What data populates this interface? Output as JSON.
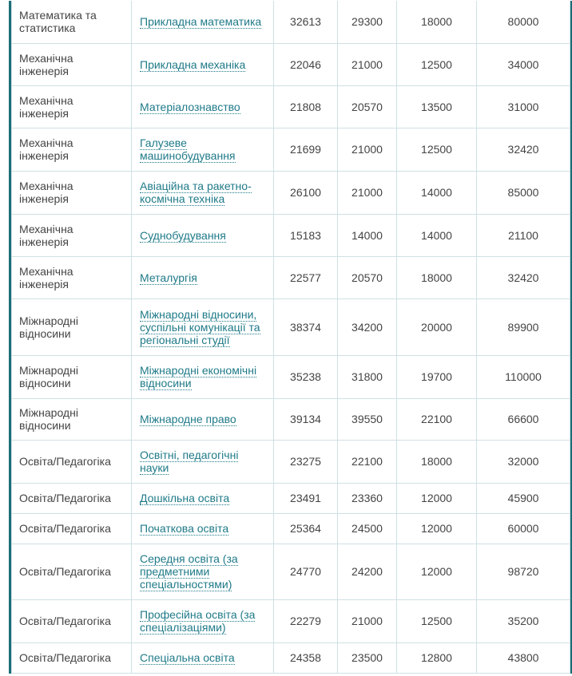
{
  "colors": {
    "accent": "#1b6e78",
    "link": "#1f7a88",
    "grid": "#cfe0e3"
  },
  "rows": [
    {
      "field": "Математика та статистика",
      "specialty": "Прикладна математика",
      "v1": "32613",
      "v2": "29300",
      "v3": "18000",
      "v4": "80000"
    },
    {
      "field": "Механічна інженерія",
      "specialty": "Прикладна механіка",
      "v1": "22046",
      "v2": "21000",
      "v3": "12500",
      "v4": "34000"
    },
    {
      "field": "Механічна інженерія",
      "specialty": "Матеріалознавство",
      "v1": "21808",
      "v2": "20570",
      "v3": "13500",
      "v4": "31000"
    },
    {
      "field": "Механічна інженерія",
      "specialty": "Галузеве машинобудування",
      "v1": "21699",
      "v2": "21000",
      "v3": "12500",
      "v4": "32420"
    },
    {
      "field": "Механічна інженерія",
      "specialty": "Авіаційна та ракетно-космічна техніка",
      "v1": "26100",
      "v2": "21000",
      "v3": "14000",
      "v4": "85000"
    },
    {
      "field": "Механічна інженерія",
      "specialty": "Суднобудування",
      "v1": "15183",
      "v2": "14000",
      "v3": "14000",
      "v4": "21100"
    },
    {
      "field": "Механічна інженерія",
      "specialty": "Металургія",
      "v1": "22577",
      "v2": "20570",
      "v3": "18000",
      "v4": "32420"
    },
    {
      "field": "Міжнародні відносини",
      "specialty": "Міжнародні відносини, суспільні комунікації та регіональні студії",
      "v1": "38374",
      "v2": "34200",
      "v3": "20000",
      "v4": "89900"
    },
    {
      "field": "Міжнародні відносини",
      "specialty": "Міжнародні економічні відносини",
      "v1": "35238",
      "v2": "31800",
      "v3": "19700",
      "v4": "110000"
    },
    {
      "field": "Міжнародні відносини",
      "specialty": "Міжнародне право",
      "v1": "39134",
      "v2": "39550",
      "v3": "22100",
      "v4": "66600"
    },
    {
      "field": "Освіта/Педагогіка",
      "specialty": "Освітні, педагогічні науки",
      "v1": "23275",
      "v2": "22100",
      "v3": "18000",
      "v4": "32000"
    },
    {
      "field": "Освіта/Педагогіка",
      "specialty": "Дошкільна освіта",
      "v1": "23491",
      "v2": "23360",
      "v3": "12000",
      "v4": "45900"
    },
    {
      "field": "Освіта/Педагогіка",
      "specialty": "Початкова освіта",
      "v1": "25364",
      "v2": "24500",
      "v3": "12000",
      "v4": "60000"
    },
    {
      "field": "Освіта/Педагогіка",
      "specialty": "Середня освіта (за предметними спеціальностями)",
      "v1": "24770",
      "v2": "24200",
      "v3": "12000",
      "v4": "98720"
    },
    {
      "field": "Освіта/Педагогіка",
      "specialty": "Професійна освіта (за спеціалізаціями)",
      "v1": "22279",
      "v2": "21000",
      "v3": "12500",
      "v4": "35200"
    },
    {
      "field": "Освіта/Педагогіка",
      "specialty": "Спеціальна освіта",
      "v1": "24358",
      "v2": "23500",
      "v3": "12800",
      "v4": "43800"
    }
  ]
}
